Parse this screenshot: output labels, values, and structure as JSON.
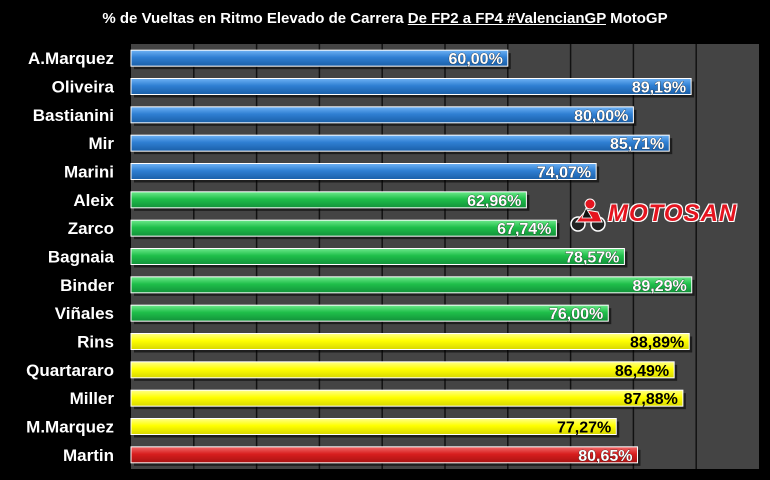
{
  "title": {
    "prefix": "% de Vueltas en Ritmo Elevado de Carrera ",
    "underlined": "De FP2 a FP4 #ValencianGP",
    "suffix": " MotoGP"
  },
  "logo": {
    "text": "MOTOSAN",
    "icon": "motorcycle-rider-icon"
  },
  "colors": {
    "background": "#000000",
    "plot_bg": "#444444",
    "grid": "#111111",
    "blue": "#2f7fd3",
    "green": "#1fbf4a",
    "yellow": "#ffff00",
    "red": "#d81e1e"
  },
  "chart_data": {
    "type": "bar",
    "orientation": "horizontal",
    "xlim": [
      0,
      100
    ],
    "grid": true,
    "categories": [
      "A.Marquez",
      "Oliveira",
      "Bastianini",
      "Mir",
      "Marini",
      "Aleix",
      "Zarco",
      "Bagnaia",
      "Binder",
      "Viñales",
      "Rins",
      "Quartararo",
      "Miller",
      "M.Marquez",
      "Martin"
    ],
    "values": [
      60.0,
      89.19,
      80.0,
      85.71,
      74.07,
      62.96,
      67.74,
      78.57,
      89.29,
      76.0,
      88.89,
      86.49,
      87.88,
      77.27,
      80.65
    ],
    "labels": [
      "60,00%",
      "89,19%",
      "80,00%",
      "85,71%",
      "74,07%",
      "62,96%",
      "67,74%",
      "78,57%",
      "89,29%",
      "76,00%",
      "88,89%",
      "86,49%",
      "87,88%",
      "77,27%",
      "80,65%"
    ],
    "bar_colors": [
      "blue",
      "blue",
      "blue",
      "blue",
      "blue",
      "green",
      "green",
      "green",
      "green",
      "green",
      "yellow",
      "yellow",
      "yellow",
      "yellow",
      "red"
    ]
  }
}
